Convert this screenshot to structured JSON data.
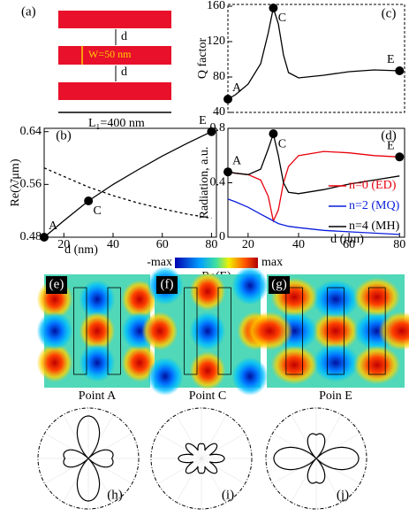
{
  "schematic": {
    "label": "(a)",
    "d_top": "d",
    "width": "W=50 nm",
    "d_bottom": "d",
    "length": "L₁=400 nm"
  },
  "chart_data": [
    {
      "type": "line",
      "panel_label": "(c)",
      "ylabel": "Q factor",
      "x": [
        12,
        15,
        20,
        25,
        28,
        30,
        32,
        34,
        36,
        40,
        50,
        60,
        70,
        80
      ],
      "series": [
        {
          "color": "#000000",
          "values": [
            55,
            60,
            72,
            95,
            130,
            158,
            140,
            105,
            85,
            79,
            82,
            86,
            88,
            87
          ]
        }
      ],
      "points": {
        "labels": [
          "A",
          "C",
          "E"
        ],
        "x": [
          12,
          30,
          80
        ],
        "y": [
          55,
          158,
          87
        ]
      },
      "xlim": [
        12,
        82
      ],
      "ylim": [
        40,
        162
      ],
      "yticks": [
        40,
        80,
        120,
        160
      ]
    },
    {
      "type": "line",
      "panel_label": "(b)",
      "ylabel": "Re(λ̃/μm)",
      "xlabel": "d (nm)",
      "x": [
        12,
        20,
        30,
        40,
        50,
        60,
        70,
        80
      ],
      "series": [
        {
          "color": "#000000",
          "values": [
            0.48,
            0.505,
            0.535,
            0.56,
            0.582,
            0.603,
            0.622,
            0.64
          ]
        },
        {
          "color": "#000000",
          "dashed": true,
          "values": [
            0.585,
            0.572,
            0.556,
            0.543,
            0.532,
            0.523,
            0.515,
            0.509
          ]
        }
      ],
      "points": {
        "labels": [
          "A",
          "C",
          "E"
        ],
        "x": [
          12,
          30,
          80
        ],
        "y": [
          0.48,
          0.535,
          0.64
        ]
      },
      "xlim": [
        12,
        82
      ],
      "ylim": [
        0.48,
        0.645
      ],
      "yticks": [
        0.48,
        0.56,
        0.64
      ],
      "xticks": [
        20,
        40,
        60,
        80
      ]
    },
    {
      "type": "line",
      "panel_label": "(d)",
      "ylabel": "Radiation, a.u.",
      "xlabel": "d (nm)",
      "x": [
        12,
        15,
        20,
        25,
        28,
        30,
        32,
        34,
        36,
        40,
        50,
        60,
        70,
        80
      ],
      "series": [
        {
          "name": "n=0 (ED)",
          "color": "#e8000b",
          "values": [
            0.48,
            0.47,
            0.46,
            0.42,
            0.3,
            0.12,
            0.2,
            0.4,
            0.52,
            0.6,
            0.63,
            0.62,
            0.6,
            0.59
          ]
        },
        {
          "name": "n=2 (MQ)",
          "color": "#0a1edc",
          "values": [
            0.28,
            0.26,
            0.22,
            0.17,
            0.14,
            0.12,
            0.1,
            0.09,
            0.08,
            0.07,
            0.05,
            0.04,
            0.03,
            0.02
          ]
        },
        {
          "name": "n=4 (MH)",
          "color": "#000000",
          "values": [
            0.48,
            0.47,
            0.46,
            0.5,
            0.65,
            0.76,
            0.6,
            0.4,
            0.33,
            0.32,
            0.35,
            0.39,
            0.42,
            0.45
          ]
        }
      ],
      "points": {
        "labels": [
          "A",
          "C",
          "E"
        ],
        "x": [
          12,
          30,
          80
        ],
        "y": [
          0.48,
          0.76,
          0.59
        ]
      },
      "xlim": [
        12,
        82
      ],
      "ylim": [
        0,
        0.8
      ],
      "yticks": [
        0,
        0.4,
        0.8
      ],
      "xticks": [
        20,
        40,
        60,
        80
      ]
    }
  ],
  "colorbar": {
    "min": "-max",
    "max": "max",
    "label": "Re(E)"
  },
  "field_maps": [
    {
      "label": "(e)",
      "caption": "Point A"
    },
    {
      "label": "(f)",
      "caption": "Point C"
    },
    {
      "label": "(g)",
      "caption": "Poin E"
    }
  ],
  "polar_plots": [
    {
      "label": "(h)"
    },
    {
      "label": "(i)"
    },
    {
      "label": "(j)"
    }
  ]
}
